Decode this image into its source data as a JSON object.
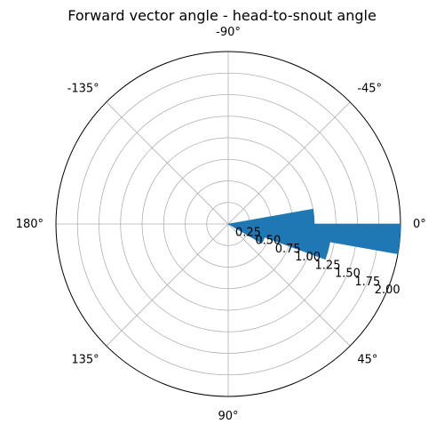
{
  "chart_data": {
    "type": "bar",
    "projection": "polar",
    "title": "Forward vector angle - head-to-snout angle",
    "theta_direction": "clockwise",
    "theta_zero": "east",
    "theta_tick_labels": [
      "0°",
      "45°",
      "90°",
      "135°",
      "180°",
      "-135°",
      "-90°",
      "-45°"
    ],
    "theta_ticks_deg": [
      0,
      45,
      90,
      135,
      180,
      225,
      270,
      315
    ],
    "r_tick_labels": [
      "0.25",
      "0.50",
      "0.75",
      "1.00",
      "1.25",
      "1.50",
      "1.75",
      "2.00"
    ],
    "r_ticks": [
      0.25,
      0.5,
      0.75,
      1.0,
      1.25,
      1.5,
      1.75,
      2.0
    ],
    "rlim": [
      0,
      2.0
    ],
    "r_label_position_deg": 22.5,
    "grid": true,
    "bar_color": "#1f77b4",
    "bars": [
      {
        "theta_start": -10,
        "theta_end": 0,
        "value": 1.0
      },
      {
        "theta_start": 0,
        "theta_end": 10,
        "value": 2.0
      },
      {
        "theta_start": 10,
        "theta_end": 20,
        "value": 1.2
      },
      {
        "theta_start": 20,
        "theta_end": 30,
        "value": 0.45
      }
    ]
  }
}
